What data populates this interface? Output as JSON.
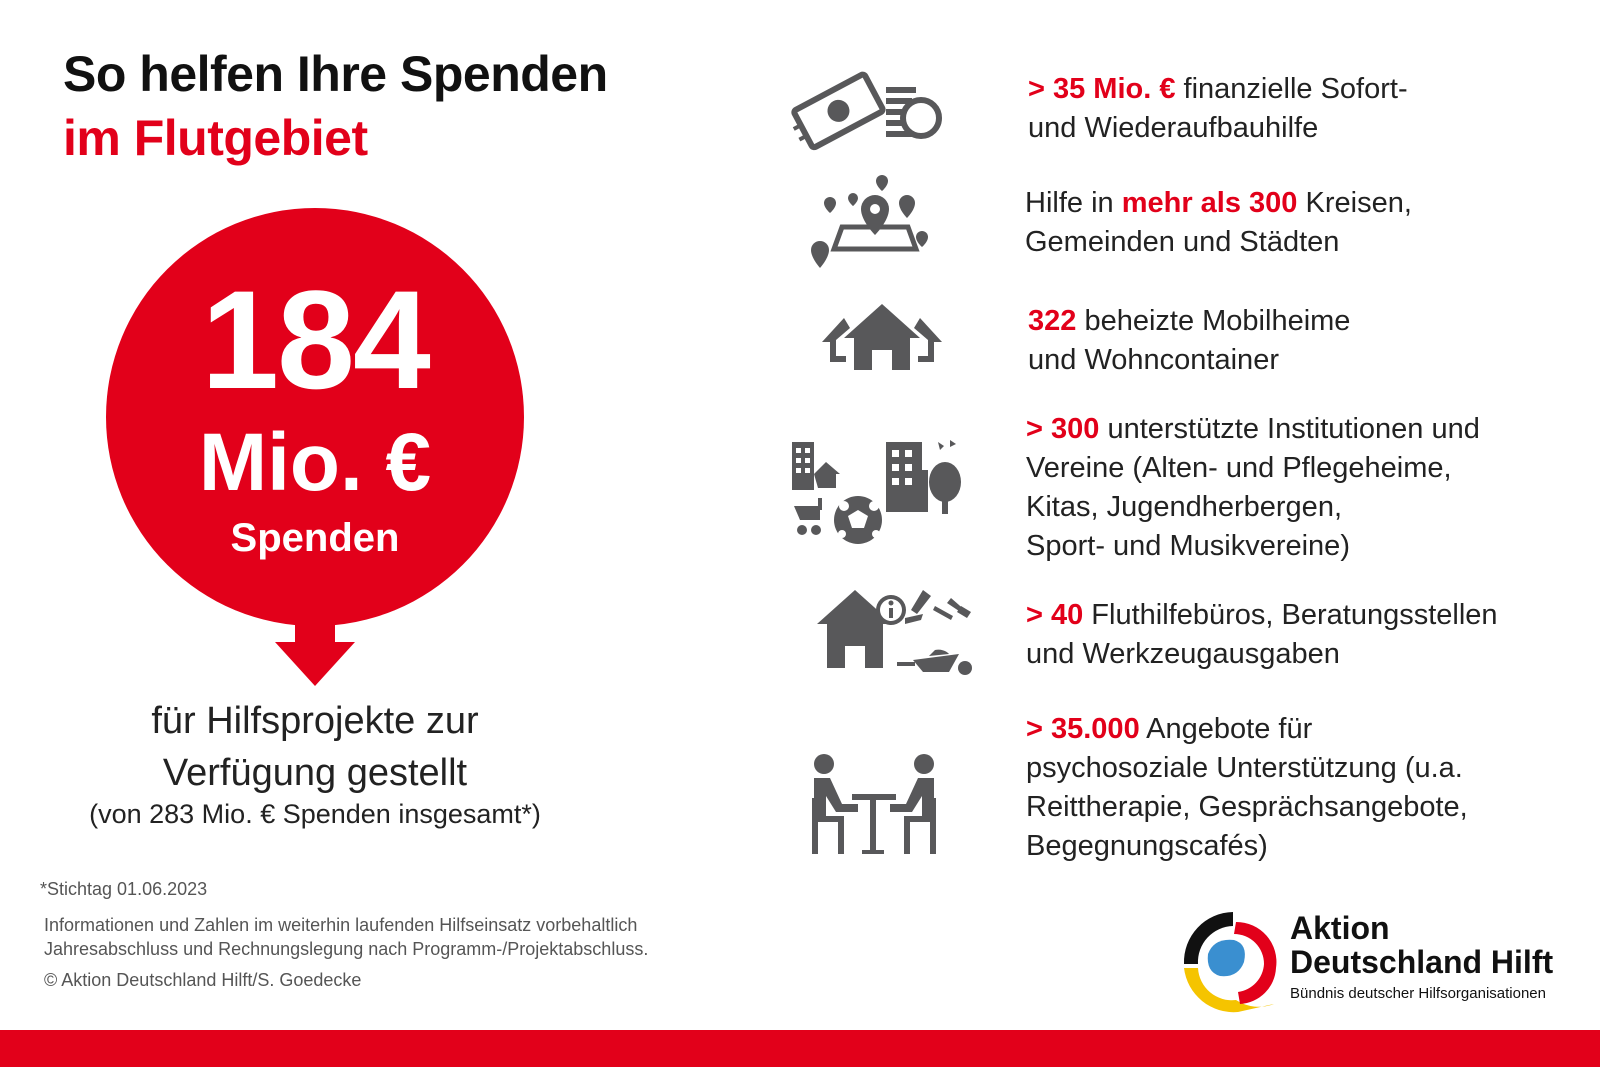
{
  "header": {
    "title_line1": "So helfen Ihre Spenden",
    "title_line2": "im Flutgebiet"
  },
  "highlight": {
    "amount": "184",
    "unit": "Mio. €",
    "label": "Spenden",
    "subtitle_line1": "für Hilfsprojekte zur",
    "subtitle_line2": "Verfügung gestellt",
    "subtitle_line3": "(von 283 Mio. € Spenden insgesamt*)"
  },
  "notes": {
    "stichtag": "*Stichtag 01.06.2023",
    "disclaimer_line1": "Informationen und Zahlen im weiterhin laufenden Hilfseinsatz vorbehaltlich",
    "disclaimer_line2": "Jahresabschluss und Rechnungslegung nach Programm-/Projektabschluss.",
    "copyright": "© Aktion Deutschland Hilft/S. Goedecke"
  },
  "items": [
    {
      "icon": "money-icon",
      "highlight": "> 35 Mio. €",
      "line1_rest": " finanzielle Sofort-",
      "line2": "und Wiederaufbauhilfe"
    },
    {
      "icon": "map-pins-icon",
      "prefix": "Hilfe in ",
      "highlight": "mehr als 300",
      "line1_rest": " Kreisen,",
      "line2": "Gemeinden und Städten"
    },
    {
      "icon": "houses-icon",
      "highlight": "322",
      "line1_rest": " beheizte Mobilheime",
      "line2": "und Wohncontainer"
    },
    {
      "icon": "institutions-icon",
      "highlight": "> 300",
      "line1_rest": " unterstützte Institutionen und",
      "line2": "Vereine (Alten- und Pflegeheime,",
      "line3": "Kitas, Jugendherbergen,",
      "line4": "Sport- und Musikvereine)"
    },
    {
      "icon": "tools-office-icon",
      "highlight": "> 40",
      "line1_rest": " Fluthilfebüros, Beratungsstellen",
      "line2": "und Werkzeugausgaben"
    },
    {
      "icon": "counseling-icon",
      "highlight": "> 35.000",
      "line1_rest": " Angebote für",
      "line2": "psychosoziale Unterstützung (u.a.",
      "line3": "Reittherapie, Gesprächsangebote,",
      "line4": "Begegnungscafés)"
    }
  ],
  "logo": {
    "line1": "Aktion",
    "line2": "Deutschland Hilft",
    "tagline": "Bündnis deutscher Hilfsorganisationen"
  },
  "colors": {
    "accent": "#e2001a",
    "icon_gray": "#58585a",
    "text": "#1a1a1a"
  }
}
